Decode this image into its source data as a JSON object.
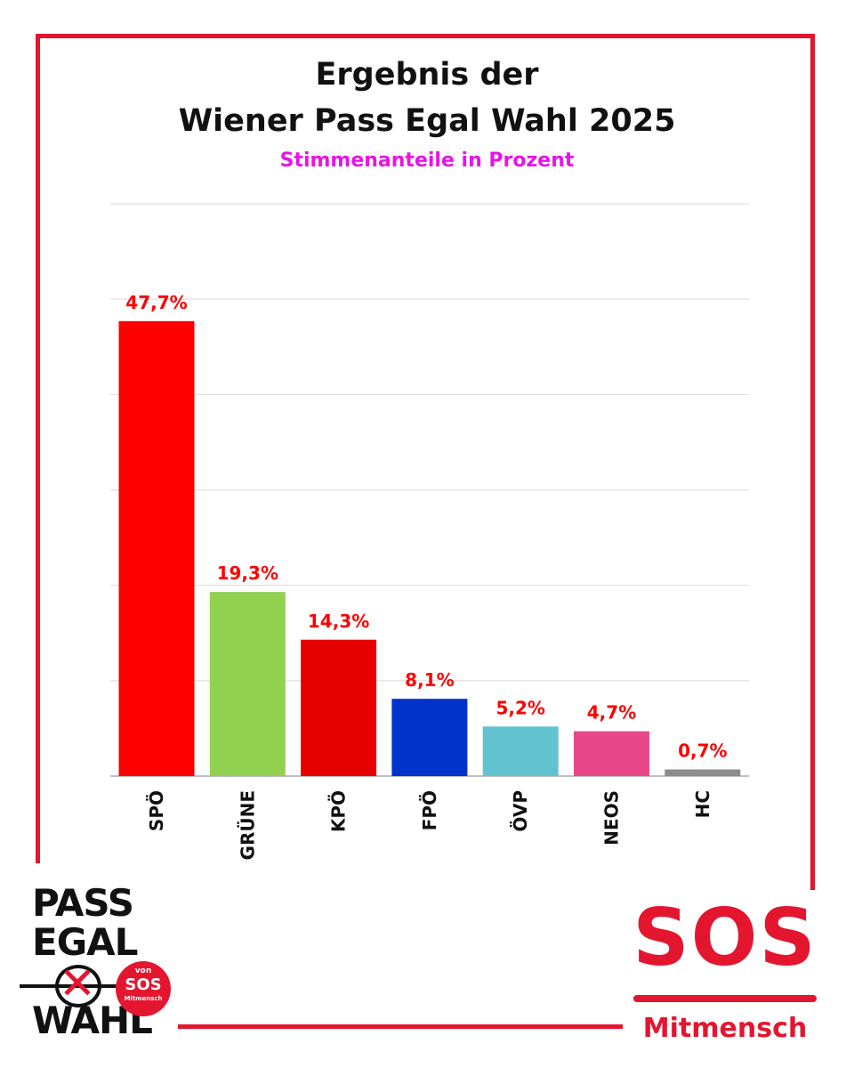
{
  "header": {
    "title_line1": "Ergebnis der",
    "title_line2": "Wiener Pass Egal Wahl 2025",
    "subtitle": "Stimmenanteile in Prozent"
  },
  "colors": {
    "frame": "#e4152f",
    "subtitle": "#e614e6",
    "value_labels": "#ff0000",
    "gridline": "#d9d9d9"
  },
  "chart_data": {
    "type": "bar",
    "title": "Ergebnis der Wiener Pass Egal Wahl 2025",
    "subtitle": "Stimmenanteile in Prozent",
    "categories": [
      "SPÖ",
      "GRÜNE",
      "KPÖ",
      "FPÖ",
      "ÖVP",
      "NEOS",
      "HC"
    ],
    "values": [
      47.7,
      19.3,
      14.3,
      8.1,
      5.2,
      4.7,
      0.7
    ],
    "value_labels": [
      "47,7%",
      "19,3%",
      "14,3%",
      "8,1%",
      "5,2%",
      "4,7%",
      "0,7%"
    ],
    "bar_colors": [
      "#ff0000",
      "#92d050",
      "#e60000",
      "#0033cc",
      "#63c2d0",
      "#e8488a",
      "#8c8c8c"
    ],
    "ylim": [
      0,
      60
    ],
    "y_gridlines": [
      0,
      10,
      20,
      30,
      40,
      50,
      60
    ],
    "grid": true,
    "xlabel": "",
    "ylabel": ""
  },
  "logos": {
    "left": {
      "word1": "PASS",
      "word2": "EGAL",
      "word3": "WAHL",
      "badge_top": "von",
      "badge_main": "SOS",
      "badge_bottom": "Mitmensch"
    },
    "right": {
      "main": "SOS",
      "sub": "Mitmensch"
    }
  }
}
